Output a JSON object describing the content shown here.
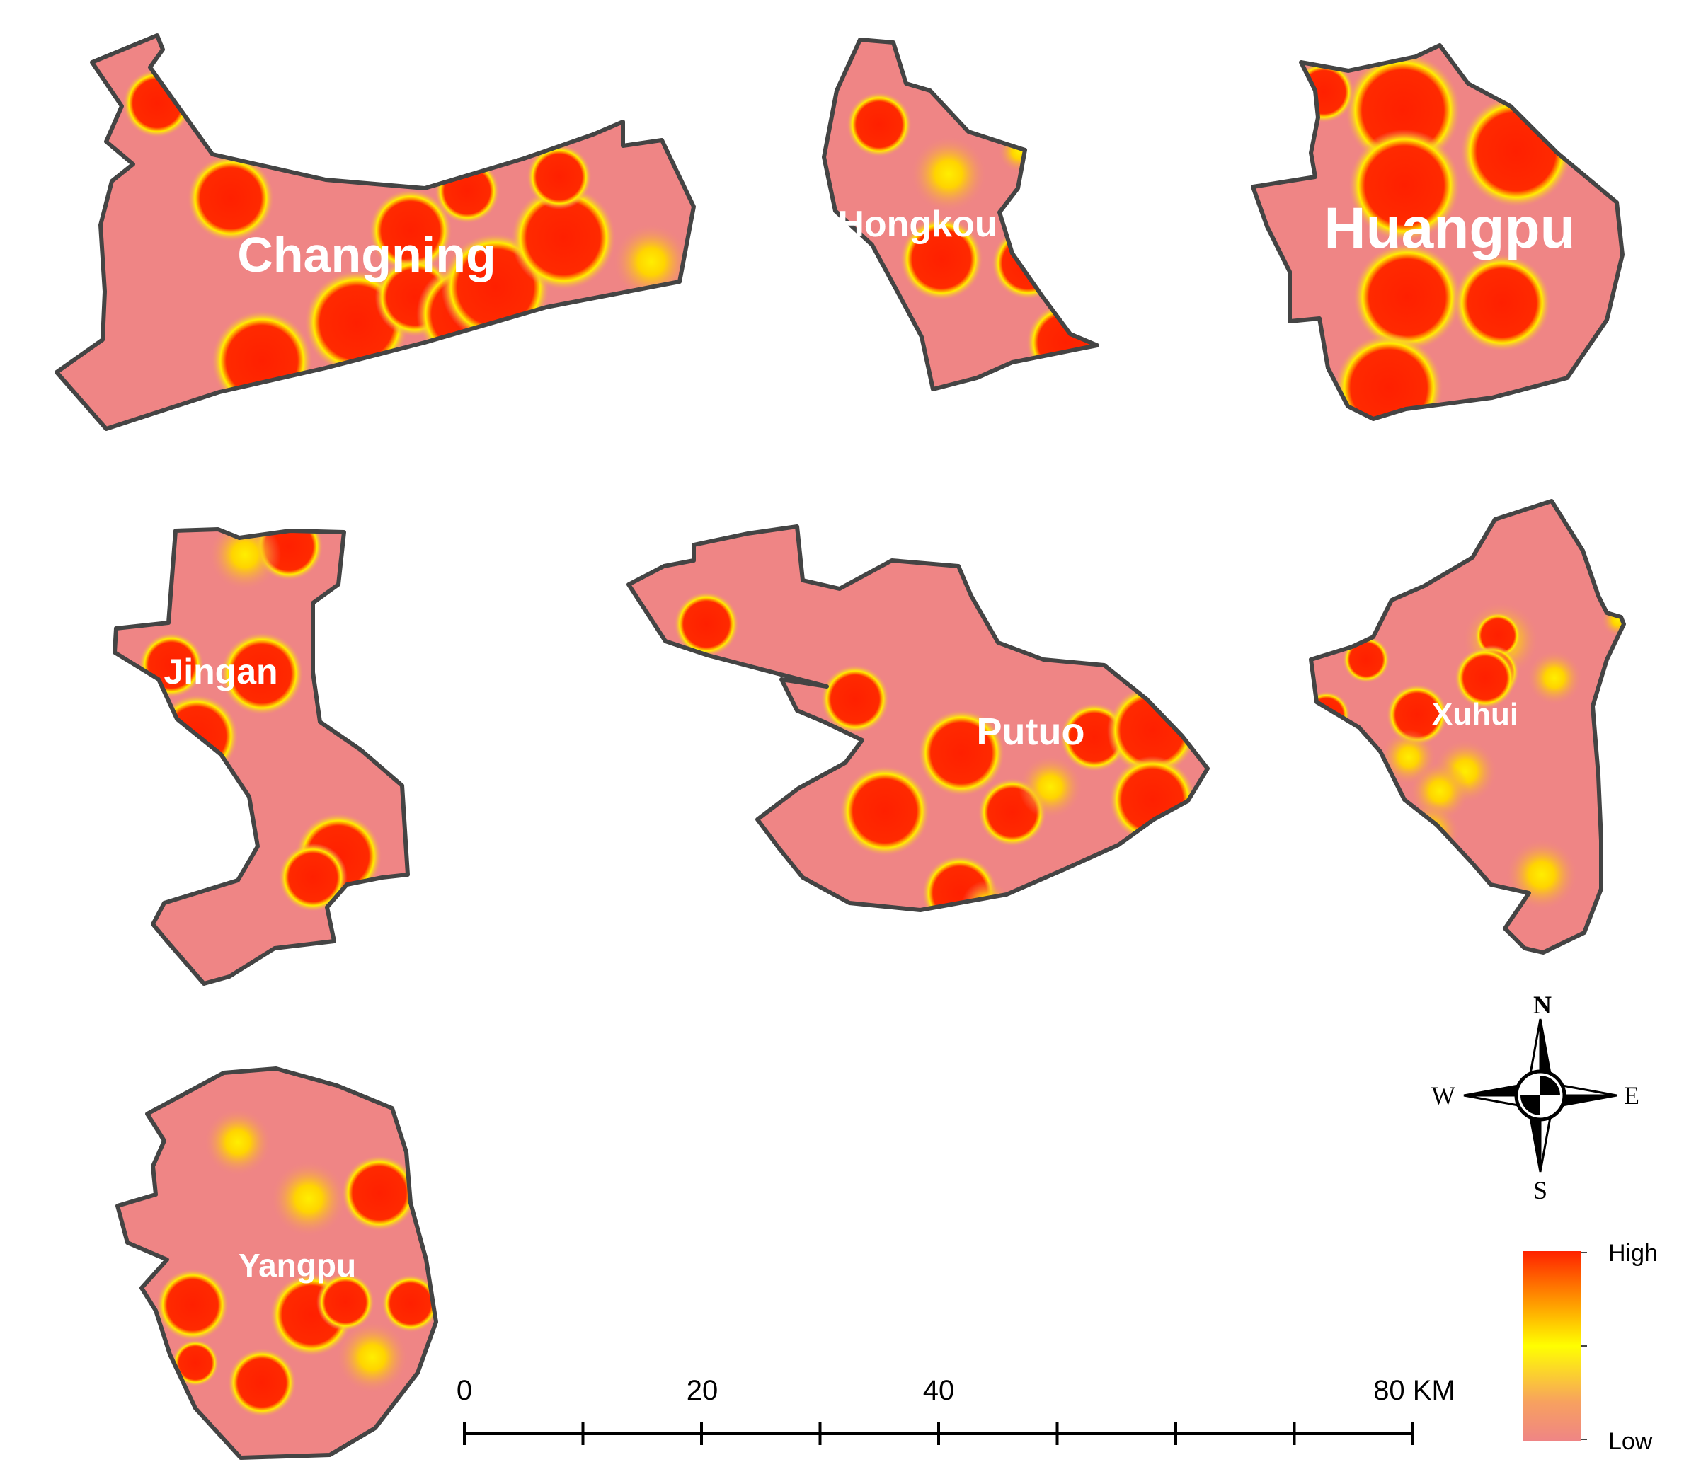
{
  "districts": [
    {
      "id": "changning",
      "label": "Changning"
    },
    {
      "id": "hongkou",
      "label": "Hongkou"
    },
    {
      "id": "huangpu",
      "label": "Huangpu"
    },
    {
      "id": "jingan",
      "label": "Jingan"
    },
    {
      "id": "putuo",
      "label": "Putuo"
    },
    {
      "id": "xuhui",
      "label": "Xuhui"
    },
    {
      "id": "yangpu",
      "label": "Yangpu"
    }
  ],
  "scale_bar": {
    "labels": [
      "0",
      "20",
      "40",
      "80 KM"
    ]
  },
  "compass": {
    "north": "N",
    "south": "S",
    "east": "E",
    "west": "W"
  },
  "legend": {
    "high": "High",
    "low": "Low"
  },
  "colors": {
    "base": "#ef8585",
    "outline": "#444444",
    "hot": "#ff2200",
    "warm": "#ffee00"
  }
}
